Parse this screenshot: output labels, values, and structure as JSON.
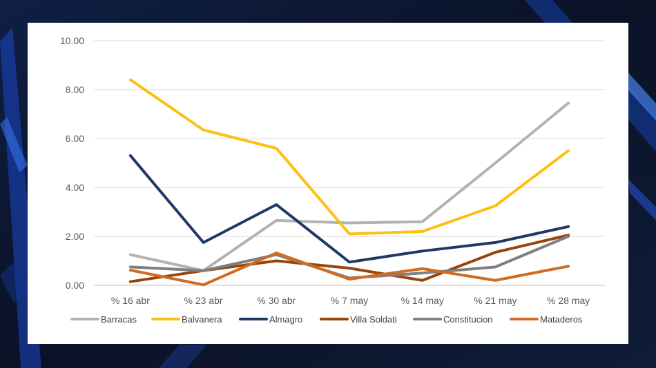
{
  "chart_data": {
    "type": "line",
    "title": "",
    "xlabel": "",
    "ylabel": "",
    "categories": [
      "% 16 abr",
      "% 23 abr",
      "% 30 abr",
      "% 7 may",
      "% 14 may",
      "% 21 may",
      "% 28 may"
    ],
    "ylim": [
      0,
      10
    ],
    "yticks": [
      "0.00",
      "2.00",
      "4.00",
      "6.00",
      "8.00",
      "10.00"
    ],
    "grid": true,
    "legend_position": "bottom",
    "series": [
      {
        "name": "Barracas",
        "color": "#b2b2b2",
        "values": [
          1.25,
          0.6,
          2.65,
          2.55,
          2.6,
          5.0,
          7.45
        ]
      },
      {
        "name": "Balvanera",
        "color": "#fdc011",
        "values": [
          8.4,
          6.35,
          5.6,
          2.1,
          2.2,
          3.25,
          5.5
        ]
      },
      {
        "name": "Almagro",
        "color": "#203864",
        "values": [
          5.3,
          1.75,
          3.3,
          0.95,
          1.4,
          1.75,
          2.4
        ]
      },
      {
        "name": "Villa Soldati",
        "color": "#97440e",
        "values": [
          0.15,
          0.6,
          1.0,
          0.7,
          0.2,
          1.35,
          2.05
        ]
      },
      {
        "name": "Constitucion",
        "color": "#7f7f7f",
        "values": [
          0.75,
          0.6,
          1.25,
          0.3,
          0.5,
          0.75,
          2.0
        ]
      },
      {
        "name": "Mataderos",
        "color": "#d06b20",
        "values": [
          0.62,
          0.02,
          1.32,
          0.25,
          0.68,
          0.2,
          0.78
        ]
      }
    ]
  }
}
